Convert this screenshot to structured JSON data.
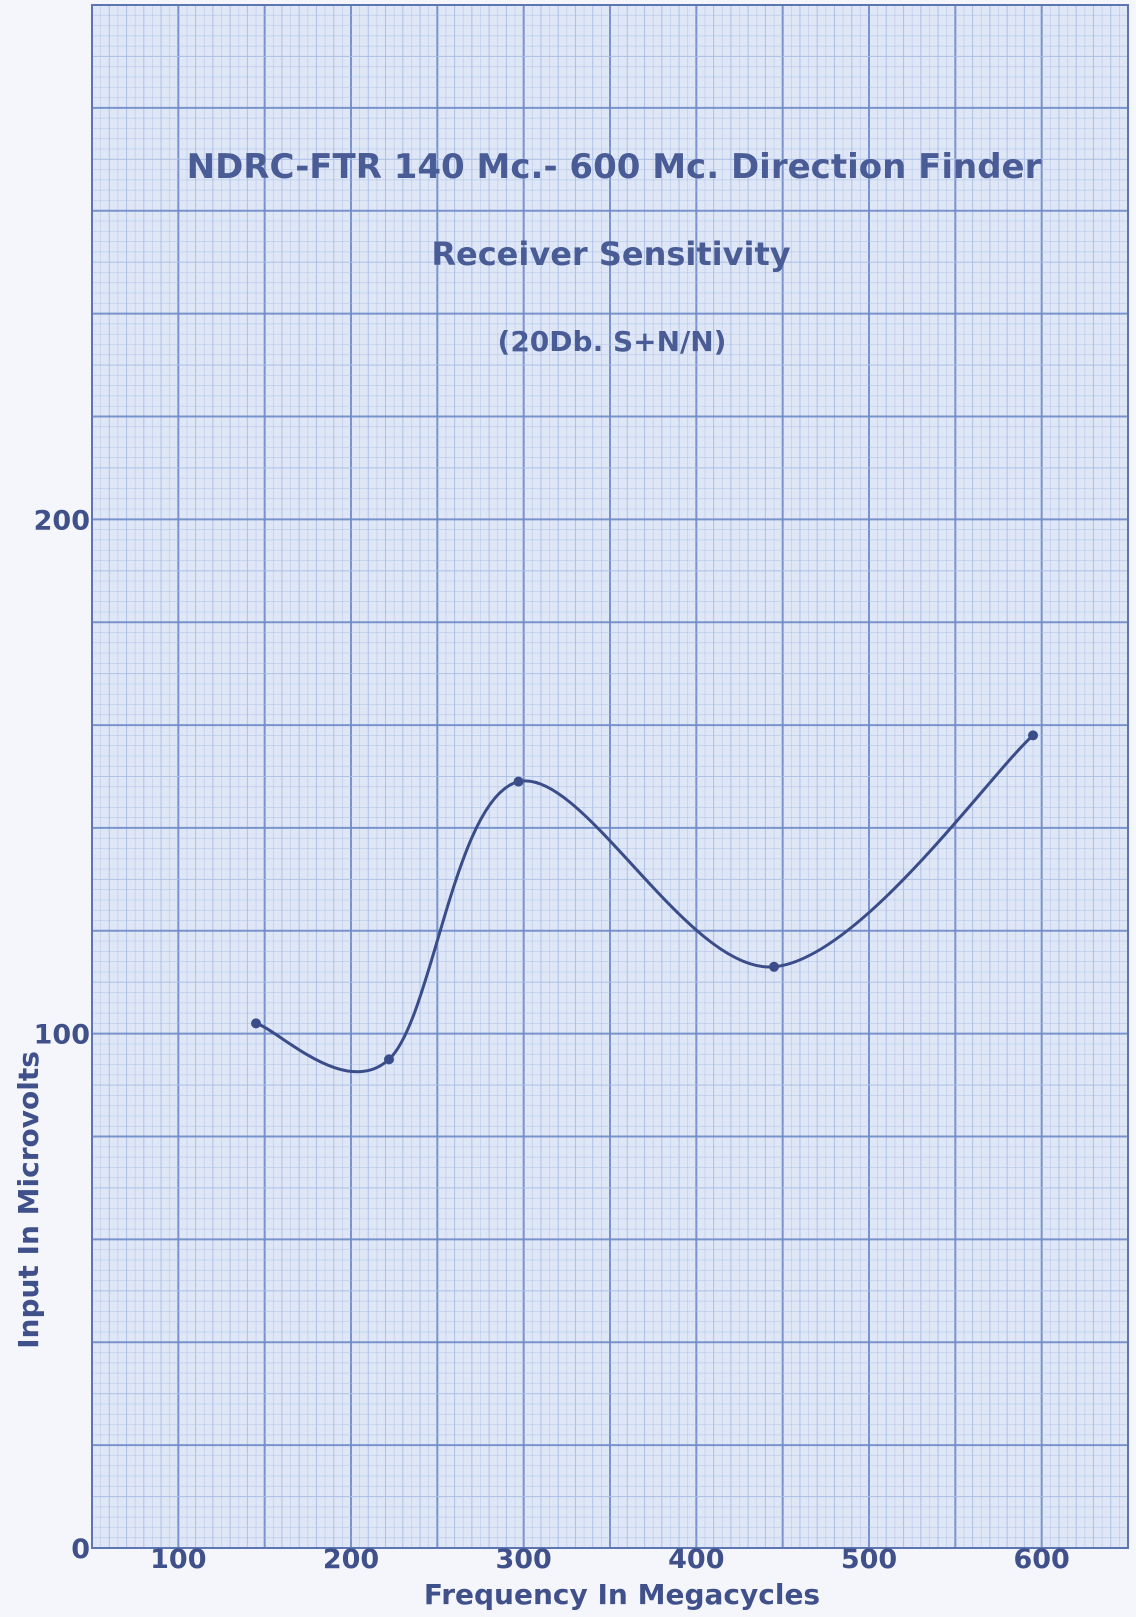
{
  "chart_data": {
    "type": "line",
    "title": "NDRC-FTR 140 Mc.- 600 Mc. Direction Finder",
    "subtitle": "Receiver Sensitivity",
    "subtitle2": "(20Db. S+N/N)",
    "xlabel": "Frequency In Megacycles",
    "ylabel": "Input In Microvolts",
    "xlim": [
      50,
      650
    ],
    "ylim": [
      0,
      300
    ],
    "x_ticks": [
      "100",
      "200",
      "300",
      "400",
      "500",
      "600"
    ],
    "x_tick_values": [
      100,
      200,
      300,
      400,
      500,
      600
    ],
    "y_ticks": [
      "0",
      "100",
      "200"
    ],
    "y_tick_values": [
      0,
      100,
      200
    ],
    "grid": true,
    "series": [
      {
        "name": "",
        "x": [
          145,
          222,
          297,
          445,
          595
        ],
        "y": [
          102,
          95,
          149,
          113,
          158
        ]
      }
    ],
    "colors": {
      "paper": "#dfe7f7",
      "grid_fine": "#a9bde4",
      "grid_major": "#6f8ac6",
      "curve": "#3a4d88"
    }
  }
}
